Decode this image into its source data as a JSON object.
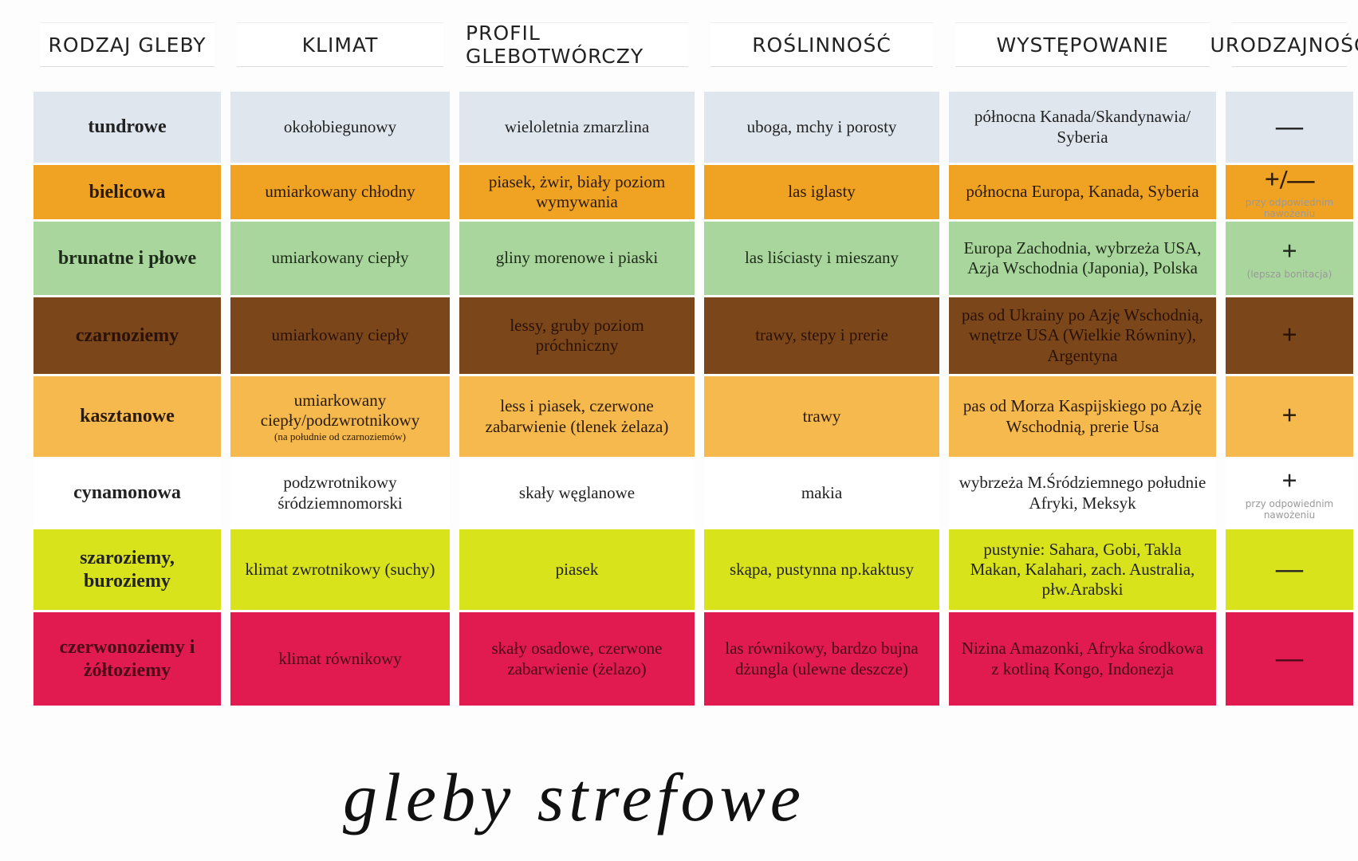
{
  "header": {
    "columns": [
      "RODZAJ GLEBY",
      "KLIMAT",
      "PROFIL GLEBOTWÓRCZY",
      "ROŚLINNOŚĆ",
      "WYSTĘPOWANIE",
      "URODZAJNOŚĆ"
    ]
  },
  "table": {
    "rows": [
      {
        "color": "#dfe6ee",
        "text_color": "#222",
        "cells": [
          "tundrowe",
          "okołobiegunowy",
          "wieloletnia zmarzlina",
          "uboga, mchy i porosty",
          "północna Kanada/Skandynawia/ Syberia",
          "—"
        ]
      },
      {
        "color": "#f0a322",
        "text_color": "#2a1a08",
        "cells": [
          "bielicowa",
          "umiarkowany chłodny",
          "piasek, żwir, biały poziom wymywania",
          "las iglasty",
          "północna Europa, Kanada, Syberia",
          "+/—"
        ],
        "fertility_note": "przy odpowiednim nawożeniu"
      },
      {
        "color": "#a9d69c",
        "text_color": "#1e2a1a",
        "cells": [
          "brunatne i płowe",
          "umiarkowany ciepły",
          "gliny morenowe i piaski",
          "las liściasty i mieszany",
          "Europa Zachodnia, wybrzeża USA, Azja Wschodnia (Japonia), Polska",
          "+"
        ],
        "fertility_note": "(lepsza bonitacja)"
      },
      {
        "color": "#7b461a",
        "text_color": "#2a1206",
        "cells": [
          "czarnoziemy",
          "umiarkowany ciepły",
          "lessy, gruby poziom próchniczny",
          "trawy, stepy i prerie",
          "pas od Ukrainy po Azję Wschodnią, wnętrze USA (Wielkie Równiny), Argentyna",
          "+"
        ]
      },
      {
        "color": "#f6b94e",
        "text_color": "#2a1a08",
        "cells": [
          "kasztanowe",
          "umiarkowany ciepły/podzwrotnikowy",
          "less i piasek, czerwone zabarwienie (tlenek żelaza)",
          "trawy",
          "pas od Morza Kaspijskiego po Azję Wschodnią, prerie Usa",
          "+"
        ],
        "climate_note": "(na południe od czarnoziemów)"
      },
      {
        "color": "#ffffff",
        "text_color": "#222",
        "cells": [
          "cynamonowa",
          "podzwrotnikowy śródziemnomorski",
          "skały węglanowe",
          "makia",
          "wybrzeża M.Śródziemnego południe Afryki, Meksyk",
          "+"
        ],
        "fertility_note": "przy odpowiednim nawożeniu"
      },
      {
        "color": "#d9e31c",
        "text_color": "#222",
        "cells": [
          "szaroziemy, buroziemy",
          "klimat zwrotnikowy (suchy)",
          "piasek",
          "skąpa, pustynna np.kaktusy",
          "pustynie: Sahara, Gobi, Takla Makan, Kalahari, zach. Australia, płw.Arabski",
          "—"
        ]
      },
      {
        "color": "#e11a50",
        "text_color": "#4a0a18",
        "cells": [
          "czerwonoziemy i żółtoziemy",
          "klimat równikowy",
          "skały osadowe, czerwone zabarwienie (żelazo)",
          "las równikowy, bardzo bujna dżungla (ulewne deszcze)",
          "Nizina Amazonki, Afryka środkowa z kotliną Kongo, Indonezja",
          "—"
        ]
      }
    ]
  },
  "footer": {
    "title": "gleby strefowe"
  }
}
